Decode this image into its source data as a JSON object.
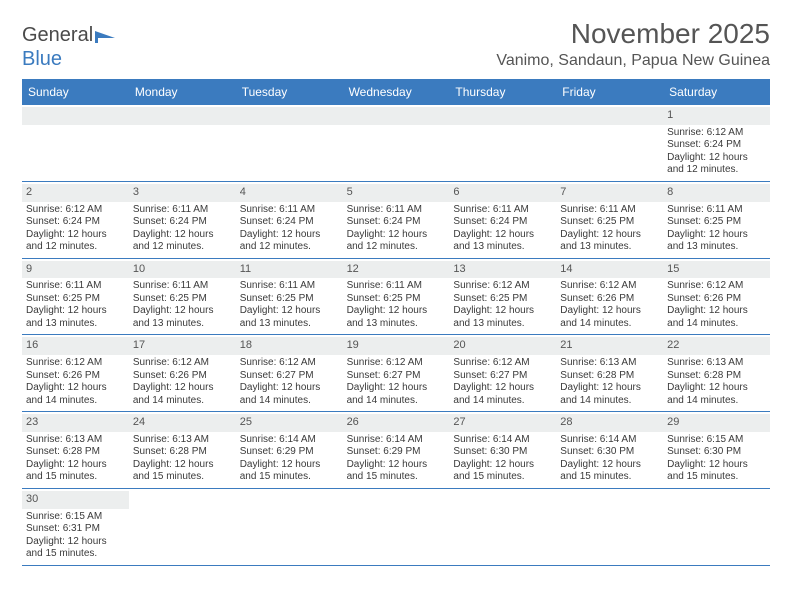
{
  "logo": {
    "text1": "General",
    "text2": "Blue"
  },
  "title": "November 2025",
  "location": "Vanimo, Sandaun, Papua New Guinea",
  "colors": {
    "header_bg": "#3b7bbf",
    "header_fg": "#ffffff",
    "num_bg": "#eceeee",
    "rule": "#3b7bbf"
  },
  "day_headers": [
    "Sunday",
    "Monday",
    "Tuesday",
    "Wednesday",
    "Thursday",
    "Friday",
    "Saturday"
  ],
  "weeks": [
    [
      {
        "n": "",
        "sr": "",
        "ss": "",
        "dl": ""
      },
      {
        "n": "",
        "sr": "",
        "ss": "",
        "dl": ""
      },
      {
        "n": "",
        "sr": "",
        "ss": "",
        "dl": ""
      },
      {
        "n": "",
        "sr": "",
        "ss": "",
        "dl": ""
      },
      {
        "n": "",
        "sr": "",
        "ss": "",
        "dl": ""
      },
      {
        "n": "",
        "sr": "",
        "ss": "",
        "dl": ""
      },
      {
        "n": "1",
        "sr": "Sunrise: 6:12 AM",
        "ss": "Sunset: 6:24 PM",
        "dl": "Daylight: 12 hours and 12 minutes."
      }
    ],
    [
      {
        "n": "2",
        "sr": "Sunrise: 6:12 AM",
        "ss": "Sunset: 6:24 PM",
        "dl": "Daylight: 12 hours and 12 minutes."
      },
      {
        "n": "3",
        "sr": "Sunrise: 6:11 AM",
        "ss": "Sunset: 6:24 PM",
        "dl": "Daylight: 12 hours and 12 minutes."
      },
      {
        "n": "4",
        "sr": "Sunrise: 6:11 AM",
        "ss": "Sunset: 6:24 PM",
        "dl": "Daylight: 12 hours and 12 minutes."
      },
      {
        "n": "5",
        "sr": "Sunrise: 6:11 AM",
        "ss": "Sunset: 6:24 PM",
        "dl": "Daylight: 12 hours and 12 minutes."
      },
      {
        "n": "6",
        "sr": "Sunrise: 6:11 AM",
        "ss": "Sunset: 6:24 PM",
        "dl": "Daylight: 12 hours and 13 minutes."
      },
      {
        "n": "7",
        "sr": "Sunrise: 6:11 AM",
        "ss": "Sunset: 6:25 PM",
        "dl": "Daylight: 12 hours and 13 minutes."
      },
      {
        "n": "8",
        "sr": "Sunrise: 6:11 AM",
        "ss": "Sunset: 6:25 PM",
        "dl": "Daylight: 12 hours and 13 minutes."
      }
    ],
    [
      {
        "n": "9",
        "sr": "Sunrise: 6:11 AM",
        "ss": "Sunset: 6:25 PM",
        "dl": "Daylight: 12 hours and 13 minutes."
      },
      {
        "n": "10",
        "sr": "Sunrise: 6:11 AM",
        "ss": "Sunset: 6:25 PM",
        "dl": "Daylight: 12 hours and 13 minutes."
      },
      {
        "n": "11",
        "sr": "Sunrise: 6:11 AM",
        "ss": "Sunset: 6:25 PM",
        "dl": "Daylight: 12 hours and 13 minutes."
      },
      {
        "n": "12",
        "sr": "Sunrise: 6:11 AM",
        "ss": "Sunset: 6:25 PM",
        "dl": "Daylight: 12 hours and 13 minutes."
      },
      {
        "n": "13",
        "sr": "Sunrise: 6:12 AM",
        "ss": "Sunset: 6:25 PM",
        "dl": "Daylight: 12 hours and 13 minutes."
      },
      {
        "n": "14",
        "sr": "Sunrise: 6:12 AM",
        "ss": "Sunset: 6:26 PM",
        "dl": "Daylight: 12 hours and 14 minutes."
      },
      {
        "n": "15",
        "sr": "Sunrise: 6:12 AM",
        "ss": "Sunset: 6:26 PM",
        "dl": "Daylight: 12 hours and 14 minutes."
      }
    ],
    [
      {
        "n": "16",
        "sr": "Sunrise: 6:12 AM",
        "ss": "Sunset: 6:26 PM",
        "dl": "Daylight: 12 hours and 14 minutes."
      },
      {
        "n": "17",
        "sr": "Sunrise: 6:12 AM",
        "ss": "Sunset: 6:26 PM",
        "dl": "Daylight: 12 hours and 14 minutes."
      },
      {
        "n": "18",
        "sr": "Sunrise: 6:12 AM",
        "ss": "Sunset: 6:27 PM",
        "dl": "Daylight: 12 hours and 14 minutes."
      },
      {
        "n": "19",
        "sr": "Sunrise: 6:12 AM",
        "ss": "Sunset: 6:27 PM",
        "dl": "Daylight: 12 hours and 14 minutes."
      },
      {
        "n": "20",
        "sr": "Sunrise: 6:12 AM",
        "ss": "Sunset: 6:27 PM",
        "dl": "Daylight: 12 hours and 14 minutes."
      },
      {
        "n": "21",
        "sr": "Sunrise: 6:13 AM",
        "ss": "Sunset: 6:28 PM",
        "dl": "Daylight: 12 hours and 14 minutes."
      },
      {
        "n": "22",
        "sr": "Sunrise: 6:13 AM",
        "ss": "Sunset: 6:28 PM",
        "dl": "Daylight: 12 hours and 14 minutes."
      }
    ],
    [
      {
        "n": "23",
        "sr": "Sunrise: 6:13 AM",
        "ss": "Sunset: 6:28 PM",
        "dl": "Daylight: 12 hours and 15 minutes."
      },
      {
        "n": "24",
        "sr": "Sunrise: 6:13 AM",
        "ss": "Sunset: 6:28 PM",
        "dl": "Daylight: 12 hours and 15 minutes."
      },
      {
        "n": "25",
        "sr": "Sunrise: 6:14 AM",
        "ss": "Sunset: 6:29 PM",
        "dl": "Daylight: 12 hours and 15 minutes."
      },
      {
        "n": "26",
        "sr": "Sunrise: 6:14 AM",
        "ss": "Sunset: 6:29 PM",
        "dl": "Daylight: 12 hours and 15 minutes."
      },
      {
        "n": "27",
        "sr": "Sunrise: 6:14 AM",
        "ss": "Sunset: 6:30 PM",
        "dl": "Daylight: 12 hours and 15 minutes."
      },
      {
        "n": "28",
        "sr": "Sunrise: 6:14 AM",
        "ss": "Sunset: 6:30 PM",
        "dl": "Daylight: 12 hours and 15 minutes."
      },
      {
        "n": "29",
        "sr": "Sunrise: 6:15 AM",
        "ss": "Sunset: 6:30 PM",
        "dl": "Daylight: 12 hours and 15 minutes."
      }
    ],
    [
      {
        "n": "30",
        "sr": "Sunrise: 6:15 AM",
        "ss": "Sunset: 6:31 PM",
        "dl": "Daylight: 12 hours and 15 minutes."
      },
      {
        "n": "",
        "sr": "",
        "ss": "",
        "dl": ""
      },
      {
        "n": "",
        "sr": "",
        "ss": "",
        "dl": ""
      },
      {
        "n": "",
        "sr": "",
        "ss": "",
        "dl": ""
      },
      {
        "n": "",
        "sr": "",
        "ss": "",
        "dl": ""
      },
      {
        "n": "",
        "sr": "",
        "ss": "",
        "dl": ""
      },
      {
        "n": "",
        "sr": "",
        "ss": "",
        "dl": ""
      }
    ]
  ]
}
